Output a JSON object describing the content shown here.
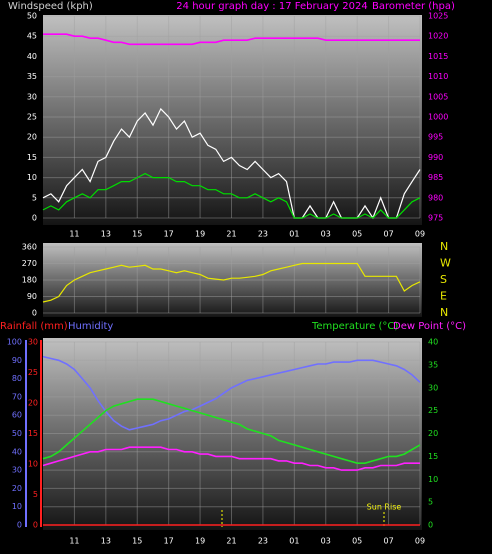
{
  "chart_data": [
    {
      "type": "line",
      "title": "24 hour graph day : 17 February 2024",
      "ylabel": "Windspeed (kph)",
      "y2label": "Barometer (hpa)",
      "categories": [
        null,
        null,
        null,
        null,
        "11",
        null,
        null,
        null,
        "13",
        null,
        null,
        null,
        "15",
        null,
        null,
        null,
        "17",
        null,
        null,
        null,
        "19",
        null,
        null,
        null,
        "21",
        null,
        null,
        null,
        "23",
        null,
        null,
        null,
        "01",
        null,
        null,
        null,
        "03",
        null,
        null,
        null,
        "05",
        null,
        null,
        null,
        "07",
        null,
        null,
        null,
        "09"
      ],
      "ylim": [
        0,
        50
      ],
      "yticks": [
        0,
        5,
        10,
        15,
        20,
        25,
        30,
        35,
        40,
        45,
        50
      ],
      "y2lim": [
        975,
        1025
      ],
      "y2ticks": [
        975,
        980,
        985,
        990,
        995,
        1000,
        1005,
        1010,
        1015,
        1020,
        1025
      ],
      "grid": true,
      "series": [
        {
          "color": "#ffffff",
          "values": [
            5,
            6,
            4,
            8,
            10,
            12,
            9,
            14,
            15,
            19,
            22,
            20,
            24,
            26,
            23,
            27,
            25,
            22,
            24,
            20,
            21,
            18,
            17,
            14,
            15,
            13,
            12,
            14,
            12,
            10,
            11,
            9,
            0,
            0,
            3,
            0,
            0,
            4,
            0,
            0,
            0,
            3,
            0,
            5,
            0,
            0,
            6,
            9,
            12
          ]
        },
        {
          "color": "#00dd00",
          "values": [
            2,
            3,
            2,
            4,
            5,
            6,
            5,
            7,
            7,
            8,
            9,
            9,
            10,
            11,
            10,
            10,
            10,
            9,
            9,
            8,
            8,
            7,
            7,
            6,
            6,
            5,
            5,
            6,
            5,
            4,
            5,
            4,
            0,
            0,
            1,
            0,
            0,
            1,
            0,
            0,
            0,
            1,
            0,
            2,
            0,
            0,
            2,
            4,
            5
          ]
        },
        {
          "color": "#ff00ff",
          "axis": "y2",
          "values": [
            1020.5,
            1020.5,
            1020.5,
            1020.5,
            1020,
            1020,
            1019.5,
            1019.5,
            1019,
            1018.5,
            1018.5,
            1018,
            1018,
            1018,
            1018,
            1018,
            1018,
            1018,
            1018,
            1018,
            1018.5,
            1018.5,
            1018.5,
            1019,
            1019,
            1019,
            1019,
            1019.5,
            1019.5,
            1019.5,
            1019.5,
            1019.5,
            1019.5,
            1019.5,
            1019.5,
            1019.5,
            1019,
            1019,
            1019,
            1019,
            1019,
            1019,
            1019,
            1019,
            1019,
            1019,
            1019,
            1019,
            1019
          ]
        }
      ]
    },
    {
      "type": "line",
      "ylim": [
        0,
        360
      ],
      "yticks": [
        0,
        90,
        180,
        270,
        360
      ],
      "y2ticks": [
        {
          "value": 360,
          "label": "N"
        },
        {
          "value": 270,
          "label": "W"
        },
        {
          "value": 180,
          "label": "S"
        },
        {
          "value": 90,
          "label": "E"
        },
        {
          "value": 0,
          "label": "N"
        }
      ],
      "grid": true,
      "series": [
        {
          "color": "#e8e800",
          "values": [
            60,
            70,
            90,
            150,
            180,
            200,
            220,
            230,
            240,
            250,
            260,
            250,
            255,
            260,
            240,
            240,
            230,
            220,
            230,
            220,
            210,
            190,
            185,
            180,
            190,
            190,
            195,
            200,
            210,
            230,
            240,
            250,
            260,
            270,
            270,
            270,
            270,
            270,
            270,
            270,
            270,
            200,
            200,
            200,
            200,
            200,
            120,
            150,
            170
          ]
        }
      ]
    },
    {
      "type": "line",
      "categories": [
        null,
        null,
        null,
        null,
        "11",
        null,
        null,
        null,
        "13",
        null,
        null,
        null,
        "15",
        null,
        null,
        null,
        "17",
        null,
        null,
        null,
        "19",
        null,
        null,
        null,
        "21",
        null,
        null,
        null,
        "23",
        null,
        null,
        null,
        "01",
        null,
        null,
        null,
        "03",
        null,
        null,
        null,
        "05",
        null,
        null,
        null,
        "07",
        null,
        null,
        null,
        "09"
      ],
      "ylim": [
        0,
        100
      ],
      "yticks": [
        0,
        10,
        20,
        30,
        40,
        50,
        60,
        70,
        80,
        90,
        100
      ],
      "y3lim": [
        0,
        30
      ],
      "y3ticks": [
        0,
        5,
        10,
        15,
        20,
        25,
        30
      ],
      "y2lim": [
        0,
        40
      ],
      "y2ticks": [
        0,
        5,
        10,
        15,
        20,
        25,
        30,
        35,
        40
      ],
      "grid": true,
      "annotations": [
        "Sun Rise"
      ],
      "series": [
        {
          "name": "Rainfall (mm)",
          "color": "#ff2020",
          "axis": "y3",
          "values": [
            0,
            0,
            0,
            0,
            0,
            0,
            0,
            0,
            0,
            0,
            0,
            0,
            0,
            0,
            0,
            0,
            0,
            0,
            0,
            0,
            0,
            0,
            0,
            0,
            0,
            0,
            0,
            0,
            0,
            0,
            0,
            0,
            0,
            0,
            0,
            0,
            0,
            0,
            0,
            0,
            0,
            0,
            0,
            0,
            0,
            0,
            0,
            0,
            0
          ]
        },
        {
          "name": "Humidity",
          "color": "#7070ff",
          "axis": "y",
          "values": [
            92,
            91,
            90,
            88,
            85,
            80,
            75,
            68,
            62,
            57,
            54,
            52,
            53,
            54,
            55,
            57,
            58,
            60,
            62,
            63,
            65,
            67,
            69,
            72,
            75,
            77,
            79,
            80,
            81,
            82,
            83,
            84,
            85,
            86,
            87,
            88,
            88,
            89,
            89,
            89,
            90,
            90,
            90,
            89,
            88,
            87,
            85,
            82,
            78
          ]
        },
        {
          "name": "Temperature (°C)",
          "color": "#20e020",
          "axis": "y2",
          "values": [
            14.5,
            15,
            16,
            17.5,
            19,
            20.5,
            22,
            23.5,
            25,
            26,
            26.5,
            27,
            27.5,
            27.5,
            27.5,
            27,
            26.5,
            26,
            25.5,
            25,
            24.5,
            24,
            23.5,
            23,
            22.5,
            22,
            21,
            20.5,
            20,
            19.5,
            18.5,
            18,
            17.5,
            17,
            16.5,
            16,
            15.5,
            15,
            14.5,
            14,
            13.5,
            13.5,
            14,
            14.5,
            15,
            15,
            15.5,
            16.5,
            17.5
          ]
        },
        {
          "name": "Dew Point (°C)",
          "color": "#ff20ff",
          "axis": "y2",
          "values": [
            13,
            13.5,
            14,
            14.5,
            15,
            15.5,
            16,
            16,
            16.5,
            16.5,
            16.5,
            17,
            17,
            17,
            17,
            17,
            16.5,
            16.5,
            16,
            16,
            15.5,
            15.5,
            15,
            15,
            15,
            14.5,
            14.5,
            14.5,
            14.5,
            14.5,
            14,
            14,
            13.5,
            13.5,
            13,
            13,
            12.5,
            12.5,
            12,
            12,
            12,
            12.5,
            12.5,
            13,
            13,
            13,
            13.5,
            13.5,
            13.5
          ]
        }
      ]
    }
  ]
}
